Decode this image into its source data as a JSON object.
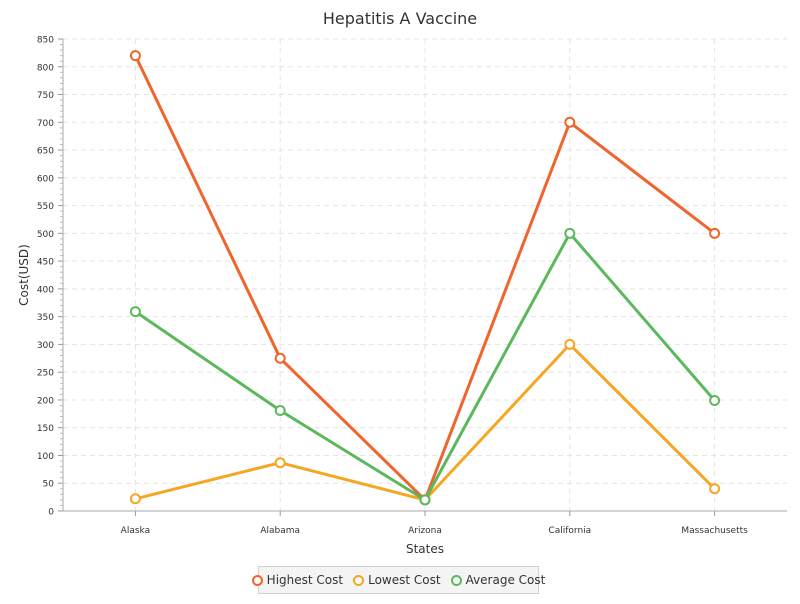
{
  "chart_data": {
    "type": "line",
    "title": "Hepatitis A Vaccine",
    "xlabel": "States",
    "ylabel": "Cost(USD)",
    "categories": [
      "Alaska",
      "Alabama",
      "Arizona",
      "California",
      "Massachusetts"
    ],
    "ylim": [
      0,
      850
    ],
    "ytick_step": 50,
    "grid": true,
    "legend_position": "bottom",
    "series": [
      {
        "name": "Highest Cost",
        "color": "#f0642e",
        "values": [
          820,
          275,
          20,
          700,
          500
        ]
      },
      {
        "name": "Lowest Cost",
        "color": "#f5a623",
        "values": [
          22,
          87,
          20,
          300,
          40
        ]
      },
      {
        "name": "Average Cost",
        "color": "#5cb85c",
        "values": [
          359,
          181,
          20,
          500,
          199
        ]
      }
    ]
  }
}
